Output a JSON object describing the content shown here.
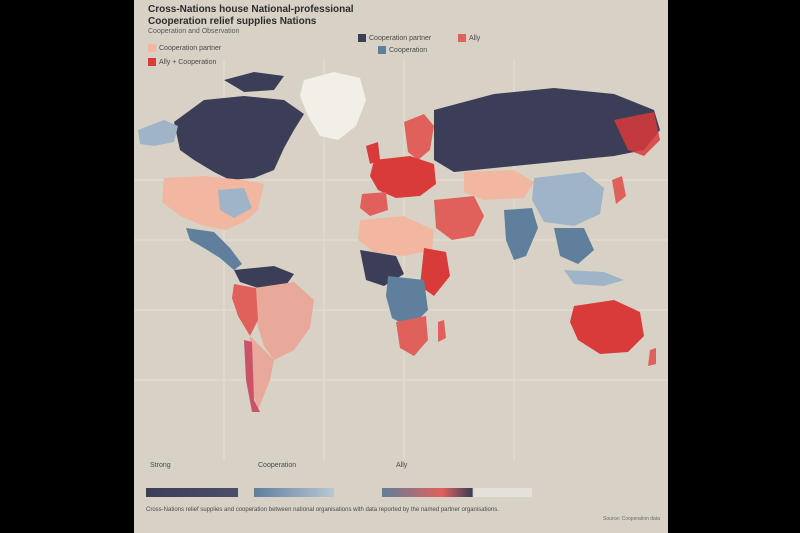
{
  "map": {
    "title": "Cross-Nations house National-professional\nCooperation relief supplies Nations",
    "subtitle": "Cooperation and Observation",
    "legend_top": [
      {
        "label": "Cooperation partner",
        "color": "#3c3d57"
      },
      {
        "label": "Ally",
        "color": "#e0615c"
      },
      {
        "label": "Cooperation partner",
        "color": "#f2b7a0"
      },
      {
        "label": "Cooperation",
        "color": "#5f7f9c"
      },
      {
        "label": "Ally + Cooperation",
        "color": "#d93a3a"
      }
    ],
    "legend_bottom": [
      {
        "label": "Strong",
        "gradient": [
          "#3c3d57",
          "#4a4e6a"
        ]
      },
      {
        "label": "Cooperation",
        "gradient": [
          "#5f7f9c",
          "#b9c7d3"
        ]
      },
      {
        "label": "Ally",
        "gradient": [
          "#5f7f9c",
          "#e0615c",
          "#3c3d57",
          "#e5e1d8"
        ]
      }
    ],
    "footnote": "Cross-Nations relief supplies and cooperation between national organisations with data reported by the named partner organisations.",
    "credit": "Source: Cooperation data",
    "colors": {
      "background": "#d8d2c6",
      "ocean_lines": "#e9e4da",
      "strong": "#3c3d57",
      "cooperation": "#5f7f9c",
      "light_blue": "#9fb4c6",
      "ally": "#e0615c",
      "deep_red": "#d93a3a",
      "peach": "#f2b7a0",
      "greenland": "#f2efe6"
    }
  }
}
